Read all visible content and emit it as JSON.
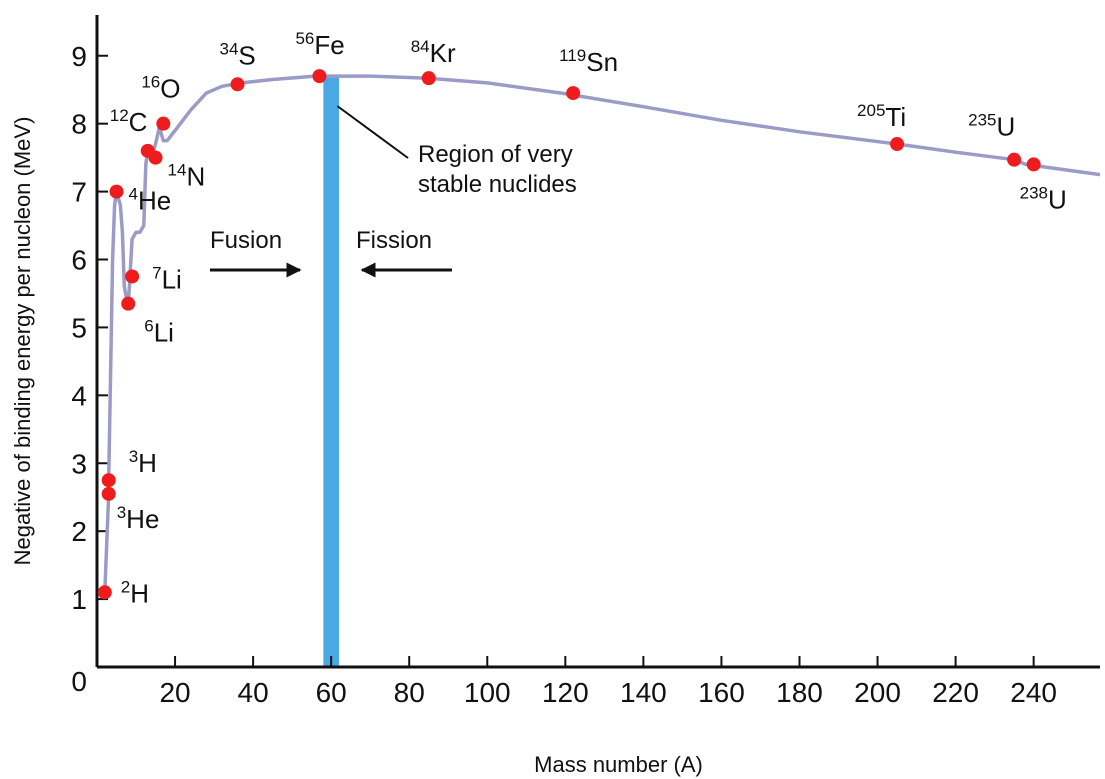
{
  "chart_data": {
    "type": "scatter",
    "title": "",
    "xlabel": "Mass number (A)",
    "ylabel": "Negative of binding energy per nucleon (MeV)",
    "xlim": [
      0,
      257
    ],
    "ylim": [
      0,
      9.6
    ],
    "x_ticks": [
      20,
      40,
      60,
      80,
      100,
      120,
      140,
      160,
      180,
      200,
      220,
      240
    ],
    "y_ticks": [
      0,
      1,
      2,
      3,
      4,
      5,
      6,
      7,
      8,
      9
    ],
    "grid": false,
    "series": [
      {
        "type": "line",
        "color": "#9b9bc8",
        "x": [
          2,
          3,
          3,
          4,
          4.5,
          5,
          6,
          6.5,
          7,
          8,
          9,
          10,
          11,
          12,
          12.5,
          13,
          14,
          15,
          16,
          17,
          18,
          20,
          24,
          28,
          32,
          37,
          45,
          56,
          62,
          70,
          85,
          100,
          119,
          140,
          160,
          180,
          205,
          220,
          235,
          238,
          257
        ],
        "y": [
          1.1,
          2.55,
          2.75,
          6.0,
          6.8,
          7.0,
          6.8,
          6.4,
          5.6,
          5.3,
          6.3,
          6.4,
          6.4,
          6.5,
          7.4,
          7.6,
          7.5,
          7.7,
          7.95,
          7.75,
          7.75,
          7.9,
          8.2,
          8.45,
          8.55,
          8.6,
          8.65,
          8.7,
          8.7,
          8.7,
          8.67,
          8.6,
          8.45,
          8.25,
          8.05,
          7.88,
          7.7,
          7.58,
          7.47,
          7.4,
          7.25
        ]
      },
      {
        "type": "scatter",
        "color": "#ee1c1c",
        "points": [
          {
            "x": 2,
            "y": 1.1,
            "mass": "2",
            "symbol": "H"
          },
          {
            "x": 3,
            "y": 2.75,
            "mass": "3",
            "symbol": "H"
          },
          {
            "x": 3,
            "y": 2.55,
            "mass": "3",
            "symbol": "He"
          },
          {
            "x": 5,
            "y": 7.0,
            "mass": "4",
            "symbol": "He"
          },
          {
            "x": 8,
            "y": 5.35,
            "mass": "6",
            "symbol": "Li"
          },
          {
            "x": 9,
            "y": 5.75,
            "mass": "7",
            "symbol": "Li"
          },
          {
            "x": 13,
            "y": 7.6,
            "mass": "12",
            "symbol": "C"
          },
          {
            "x": 15,
            "y": 7.5,
            "mass": "14",
            "symbol": "N"
          },
          {
            "x": 17,
            "y": 8.0,
            "mass": "16",
            "symbol": "O"
          },
          {
            "x": 36,
            "y": 8.58,
            "mass": "34",
            "symbol": "S"
          },
          {
            "x": 57,
            "y": 8.7,
            "mass": "56",
            "symbol": "Fe"
          },
          {
            "x": 85,
            "y": 8.67,
            "mass": "84",
            "symbol": "Kr"
          },
          {
            "x": 122,
            "y": 8.45,
            "mass": "119",
            "symbol": "Sn"
          },
          {
            "x": 205,
            "y": 7.7,
            "mass": "205",
            "symbol": "Ti"
          },
          {
            "x": 235,
            "y": 7.47,
            "mass": "235",
            "symbol": "U"
          },
          {
            "x": 240,
            "y": 7.4,
            "mass": "238",
            "symbol": "U"
          }
        ]
      }
    ],
    "band": {
      "x": [
        58,
        62
      ],
      "color": "#4aa9e4"
    },
    "annotations": {
      "region_line1": "Region of very",
      "region_line2": "stable nuclides",
      "fusion": "Fusion",
      "fission": "Fission"
    }
  }
}
